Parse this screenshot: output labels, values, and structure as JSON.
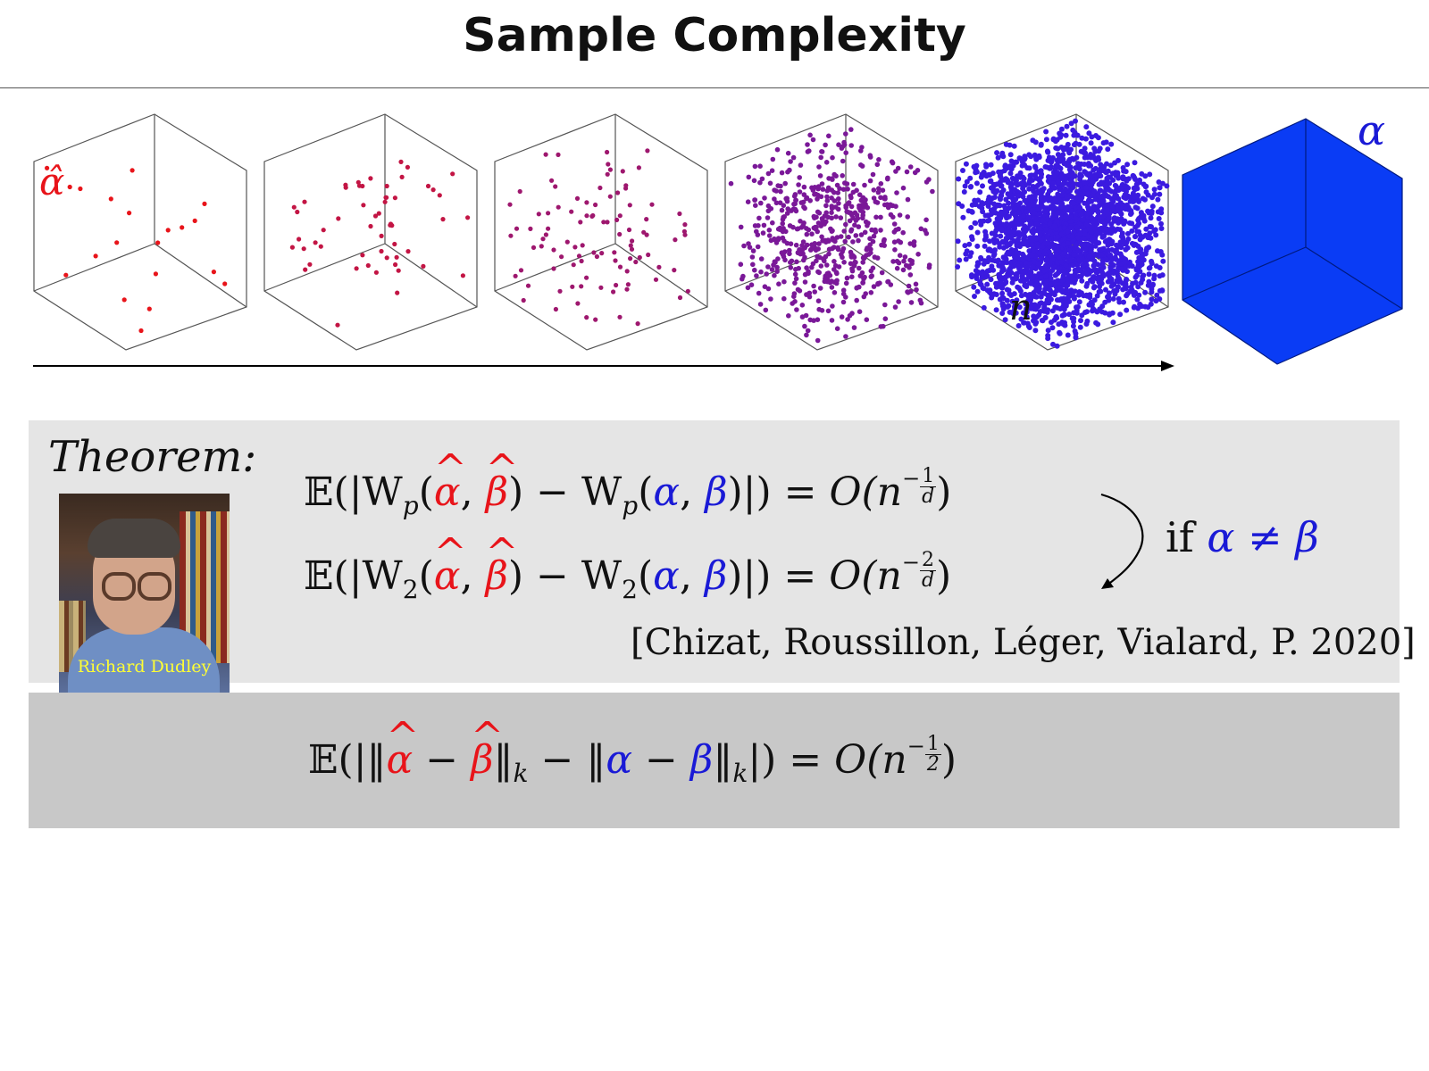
{
  "slide": {
    "title": "Sample Complexity"
  },
  "figure": {
    "empirical_label": "α̂",
    "axis_label": "n",
    "true_label": "α",
    "dot_counts": [
      20,
      55,
      100,
      600,
      2500
    ],
    "colors": {
      "sample_start": "#e8141a",
      "sample_end": "#3b1ae0",
      "true_measure": "#0a3cf5",
      "cube_edge": "#555555"
    }
  },
  "theorem": {
    "label": "Theorem:",
    "photo_caption": "Richard Dudley",
    "eq1": {
      "E": "𝔼(|W",
      "sub_p": "p",
      "open": "(",
      "alpha_hat": "α",
      "comma": ", ",
      "beta_hat": "β",
      "mid": ") − W",
      "sub_p2": "p",
      "open2": "(",
      "alpha": "α",
      "comma2": ", ",
      "beta": "β",
      "close": ")|) = ",
      "O": "O",
      "n": "(n",
      "neg": "−",
      "num": "1",
      "den": "d",
      "end": ")"
    },
    "eq2": {
      "E": "𝔼(|W",
      "sub": "2",
      "open": "(",
      "alpha_hat": "α",
      "comma": ", ",
      "beta_hat": "β",
      "mid": ") − W",
      "sub2": "2",
      "open2": "(",
      "alpha": "α",
      "comma2": ", ",
      "beta": "β",
      "close": ")|) = ",
      "O": "O",
      "n": "(n",
      "neg": "−",
      "num": "2",
      "den": "d",
      "end": ")"
    },
    "condition_if": "if",
    "condition_expr": "α ≠ β",
    "citation": "[Chizat, Roussillon, Léger, Vialard, P. 2020]"
  },
  "mmd": {
    "E": "𝔼(|‖",
    "alpha_hat": "α",
    "minus": " − ",
    "beta_hat": "β",
    "norm_k": "‖",
    "k": "k",
    "minus2": " − ‖",
    "alpha": "α",
    "minus3": " − ",
    "beta": "β",
    "norm_k2": "‖",
    "k2": "k",
    "close": "|) = ",
    "O": "O",
    "n": "(n",
    "neg": "−",
    "num": "1",
    "den": "2",
    "end": ")"
  }
}
